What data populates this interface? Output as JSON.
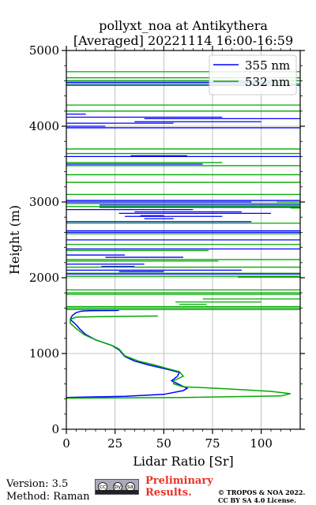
{
  "chart_data": {
    "type": "line",
    "title_line1": "pollyxt_noa at Antikythera",
    "title_line2": "[Averaged] 20221114 16:00-16:59",
    "xlabel": "Lidar Ratio [Sr]",
    "ylabel": "Height (m)",
    "xlim": [
      0,
      120
    ],
    "ylim": [
      0,
      5000
    ],
    "xticks": [
      0,
      25,
      50,
      75,
      100
    ],
    "yticks": [
      0,
      1000,
      2000,
      3000,
      4000,
      5000
    ],
    "grid": true,
    "legend": "top-right",
    "series": [
      {
        "name": "355 nm",
        "color": "#0000ff",
        "points": [
          [
            0,
            420
          ],
          [
            30,
            435
          ],
          [
            50,
            460
          ],
          [
            60,
            510
          ],
          [
            62,
            540
          ],
          [
            58,
            590
          ],
          [
            54,
            640
          ],
          [
            57,
            700
          ],
          [
            58,
            750
          ],
          [
            52,
            790
          ],
          [
            42,
            850
          ],
          [
            35,
            900
          ],
          [
            30,
            960
          ],
          [
            27,
            1050
          ],
          [
            23,
            1110
          ],
          [
            15,
            1180
          ],
          [
            10,
            1250
          ],
          [
            7,
            1320
          ],
          [
            5,
            1380
          ],
          [
            2,
            1450
          ],
          [
            3,
            1500
          ],
          [
            5,
            1540
          ],
          [
            8,
            1560
          ],
          [
            12,
            1565
          ],
          [
            25,
            1568
          ],
          [
            27,
            1570
          ]
        ],
        "segments": [
          [
            0,
            4540,
            120,
            4540
          ],
          [
            0,
            4600,
            120,
            4600
          ],
          [
            0,
            4580,
            110,
            4580
          ],
          [
            0,
            4160,
            10,
            4160
          ],
          [
            0,
            4120,
            80,
            4120
          ],
          [
            40,
            4100,
            120,
            4100
          ],
          [
            35,
            4060,
            100,
            4060
          ],
          [
            0,
            4040,
            55,
            4040
          ],
          [
            0,
            4000,
            20,
            4000
          ],
          [
            0,
            3980,
            120,
            3980
          ],
          [
            0,
            3600,
            120,
            3600
          ],
          [
            33,
            3610,
            62,
            3610
          ],
          [
            0,
            3500,
            70,
            3500
          ],
          [
            0,
            3020,
            120,
            3020
          ],
          [
            0,
            3000,
            95,
            3000
          ],
          [
            17,
            2960,
            120,
            2960
          ],
          [
            17,
            2930,
            120,
            2930
          ],
          [
            0,
            2900,
            65,
            2900
          ],
          [
            35,
            2870,
            90,
            2870
          ],
          [
            27,
            2850,
            105,
            2850
          ],
          [
            38,
            2820,
            50,
            2820
          ],
          [
            30,
            2810,
            80,
            2810
          ],
          [
            40,
            2780,
            55,
            2780
          ],
          [
            0,
            2740,
            95,
            2740
          ],
          [
            0,
            2620,
            120,
            2620
          ],
          [
            0,
            2600,
            120,
            2600
          ],
          [
            0,
            2500,
            120,
            2500
          ],
          [
            0,
            2380,
            120,
            2380
          ],
          [
            0,
            2300,
            30,
            2300
          ],
          [
            20,
            2270,
            60,
            2270
          ],
          [
            0,
            2180,
            40,
            2180
          ],
          [
            18,
            2150,
            35,
            2150
          ],
          [
            0,
            2100,
            90,
            2100
          ],
          [
            0,
            2050,
            120,
            2050
          ],
          [
            27,
            2080,
            50,
            2080
          ]
        ]
      },
      {
        "name": "532 nm",
        "color": "#00aa00",
        "points": [
          [
            0,
            410
          ],
          [
            60,
            420
          ],
          [
            110,
            440
          ],
          [
            115,
            470
          ],
          [
            105,
            500
          ],
          [
            85,
            530
          ],
          [
            70,
            550
          ],
          [
            60,
            560
          ],
          [
            55,
            600
          ],
          [
            55,
            640
          ],
          [
            60,
            700
          ],
          [
            58,
            760
          ],
          [
            52,
            800
          ],
          [
            45,
            850
          ],
          [
            37,
            900
          ],
          [
            30,
            970
          ],
          [
            27,
            1060
          ],
          [
            24,
            1100
          ],
          [
            15,
            1180
          ],
          [
            9,
            1250
          ],
          [
            5,
            1330
          ],
          [
            2,
            1400
          ],
          [
            2,
            1450
          ],
          [
            5,
            1480
          ],
          [
            20,
            1488
          ],
          [
            35,
            1492
          ],
          [
            47,
            1495
          ]
        ],
        "segments": [
          [
            0,
            4720,
            120,
            4720
          ],
          [
            0,
            4640,
            120,
            4640
          ],
          [
            0,
            4600,
            120,
            4600
          ],
          [
            0,
            4560,
            120,
            4560
          ],
          [
            0,
            4280,
            120,
            4280
          ],
          [
            0,
            4200,
            120,
            4200
          ],
          [
            0,
            3700,
            120,
            3700
          ],
          [
            0,
            3640,
            120,
            3640
          ],
          [
            0,
            3520,
            80,
            3520
          ],
          [
            0,
            3480,
            120,
            3480
          ],
          [
            0,
            3360,
            120,
            3360
          ],
          [
            0,
            3260,
            120,
            3260
          ],
          [
            0,
            3100,
            120,
            3100
          ],
          [
            108,
            3000,
            120,
            3000
          ],
          [
            0,
            2980,
            120,
            2980
          ],
          [
            0,
            2940,
            120,
            2940
          ],
          [
            115,
            2920,
            120,
            2920
          ],
          [
            0,
            2720,
            120,
            2720
          ],
          [
            0,
            2580,
            120,
            2580
          ],
          [
            0,
            2440,
            120,
            2440
          ],
          [
            0,
            2360,
            73,
            2360
          ],
          [
            0,
            2240,
            120,
            2240
          ],
          [
            0,
            2220,
            78,
            2220
          ],
          [
            0,
            2140,
            120,
            2140
          ],
          [
            0,
            2060,
            120,
            2060
          ],
          [
            0,
            2020,
            120,
            2020
          ],
          [
            88,
            2010,
            120,
            2010
          ],
          [
            0,
            1840,
            120,
            1840
          ],
          [
            0,
            1800,
            120,
            1800
          ],
          [
            0,
            1780,
            120,
            1780
          ],
          [
            56,
            1680,
            100,
            1680
          ],
          [
            58,
            1650,
            72,
            1650
          ],
          [
            0,
            1620,
            120,
            1620
          ],
          [
            0,
            1600,
            120,
            1600
          ],
          [
            0,
            1580,
            120,
            1580
          ],
          [
            70,
            1720,
            120,
            1720
          ]
        ]
      }
    ]
  },
  "footer": {
    "version": "Version: 3.5",
    "method": "Method: Raman",
    "prelim_line1": "Preliminary",
    "prelim_line2": "Results.",
    "copyright_line1": "© TROPOS & NOA 2022.",
    "copyright_line2": "CC BY SA 4.0 License.",
    "badge_symbols": [
      "cc",
      "by",
      "sa"
    ]
  }
}
